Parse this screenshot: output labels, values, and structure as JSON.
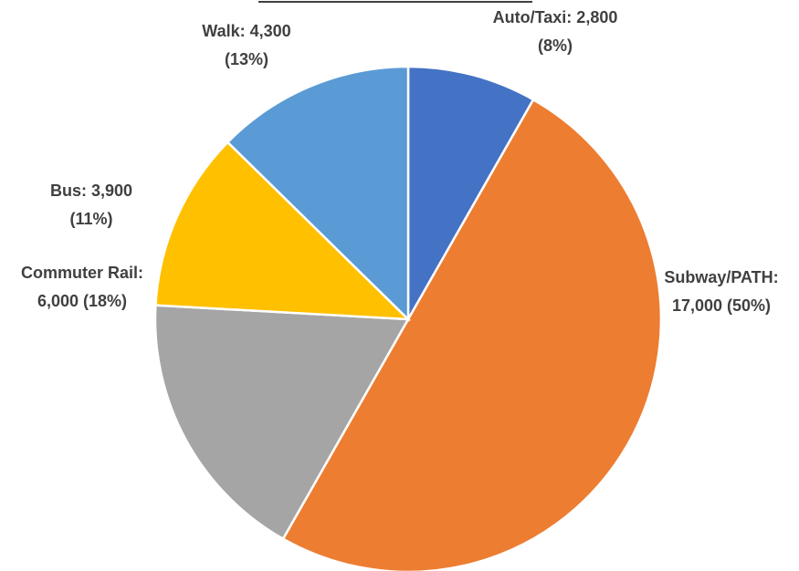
{
  "chart_data": {
    "type": "pie",
    "values": [
      2800,
      17000,
      6000,
      3900,
      4300
    ],
    "value_labels": [
      [
        "Auto/Taxi: 2,800",
        "(8%)"
      ],
      [
        "Subway/PATH:",
        "17,000 (50%)"
      ],
      [
        "Commuter Rail:",
        "6,000  (18%)"
      ],
      [
        "Bus: 3,900",
        "(11%)"
      ],
      [
        "Walk: 4,300",
        "(13%)"
      ]
    ],
    "colors": [
      "#4472c4",
      "#ed7d31",
      "#a5a5a5",
      "#ffc000",
      "#5b9bd5"
    ]
  }
}
